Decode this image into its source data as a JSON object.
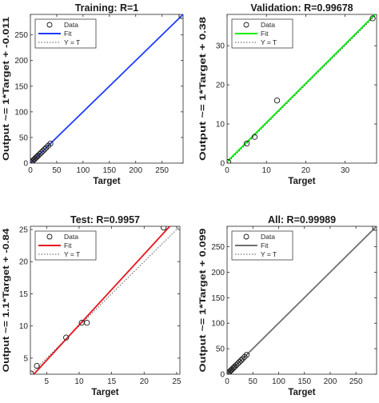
{
  "chart_data": [
    {
      "type": "scatter",
      "title": "Training: R=1",
      "xlabel": "Target",
      "ylabel": "Output ~= 1*Target + -0.011",
      "xlim": [
        0,
        290
      ],
      "ylim": [
        0,
        290
      ],
      "xticks": [
        0,
        50,
        100,
        150,
        200,
        250
      ],
      "yticks": [
        0,
        50,
        100,
        150,
        200,
        250
      ],
      "grid": false,
      "legend_position": "top-left",
      "legend": [
        "Data",
        "Fit",
        "Y = T"
      ],
      "fit_color": "#1f3cff",
      "fit": {
        "slope": 1,
        "intercept": -0.011
      },
      "points": [
        [
          1,
          1
        ],
        [
          3,
          3
        ],
        [
          5,
          5
        ],
        [
          7,
          7
        ],
        [
          9,
          9
        ],
        [
          11,
          11
        ],
        [
          13,
          13
        ],
        [
          15,
          15
        ],
        [
          18,
          18
        ],
        [
          21,
          21
        ],
        [
          24,
          24
        ],
        [
          27,
          27
        ],
        [
          30,
          30
        ],
        [
          34,
          34
        ],
        [
          38,
          38
        ],
        [
          287,
          287
        ]
      ]
    },
    {
      "type": "scatter",
      "title": "Validation: R=0.99678",
      "xlabel": "Target",
      "ylabel": "Output ~= 1*Target + 0.38",
      "xlim": [
        0,
        38
      ],
      "ylim": [
        0,
        38
      ],
      "xticks": [
        0,
        10,
        20,
        30
      ],
      "yticks": [
        0,
        10,
        20,
        30
      ],
      "grid": false,
      "legend_position": "top-left",
      "legend": [
        "Data",
        "Fit",
        "Y = T"
      ],
      "fit_color": "#00ee00",
      "fit": {
        "slope": 1,
        "intercept": 0.38
      },
      "points": [
        [
          0.3,
          0.3
        ],
        [
          5,
          5
        ],
        [
          7,
          6.7
        ],
        [
          12.7,
          16
        ],
        [
          37,
          37
        ]
      ]
    },
    {
      "type": "scatter",
      "title": "Test: R=0.9957",
      "xlabel": "Target",
      "ylabel": "Output ~= 1.1*Target + -0.84",
      "xlim": [
        2.5,
        25.5
      ],
      "ylim": [
        2.5,
        25.5
      ],
      "xticks": [
        5,
        10,
        15,
        20,
        25
      ],
      "yticks": [
        5,
        10,
        15,
        20,
        25
      ],
      "grid": false,
      "legend_position": "top-left",
      "legend": [
        "Data",
        "Fit",
        "Y = T"
      ],
      "fit_color": "#e8141c",
      "fit": {
        "slope": 1.1,
        "intercept": -0.84
      },
      "points": [
        [
          2.6,
          2.6
        ],
        [
          3.5,
          3.8
        ],
        [
          8,
          8.2
        ],
        [
          10.4,
          10.5
        ],
        [
          11.2,
          10.5
        ],
        [
          23,
          25.3
        ]
      ]
    },
    {
      "type": "scatter",
      "title": "All: R=0.99989",
      "xlabel": "Target",
      "ylabel": "Output ~= 1*Target + 0.099",
      "xlim": [
        0,
        290
      ],
      "ylim": [
        0,
        290
      ],
      "xticks": [
        0,
        50,
        100,
        150,
        200,
        250
      ],
      "yticks": [
        0,
        50,
        100,
        150,
        200,
        250
      ],
      "grid": false,
      "legend_position": "top-left",
      "legend": [
        "Data",
        "Fit",
        "Y = T"
      ],
      "fit_color": "#707070",
      "fit": {
        "slope": 1,
        "intercept": 0.099
      },
      "points": [
        [
          1,
          1
        ],
        [
          3,
          3
        ],
        [
          5,
          5
        ],
        [
          7,
          7
        ],
        [
          9,
          9
        ],
        [
          11,
          11
        ],
        [
          13,
          13
        ],
        [
          15,
          15
        ],
        [
          18,
          18
        ],
        [
          21,
          21
        ],
        [
          24,
          24
        ],
        [
          27,
          27
        ],
        [
          30,
          30
        ],
        [
          34,
          34
        ],
        [
          38,
          38
        ],
        [
          287,
          287
        ]
      ]
    }
  ]
}
